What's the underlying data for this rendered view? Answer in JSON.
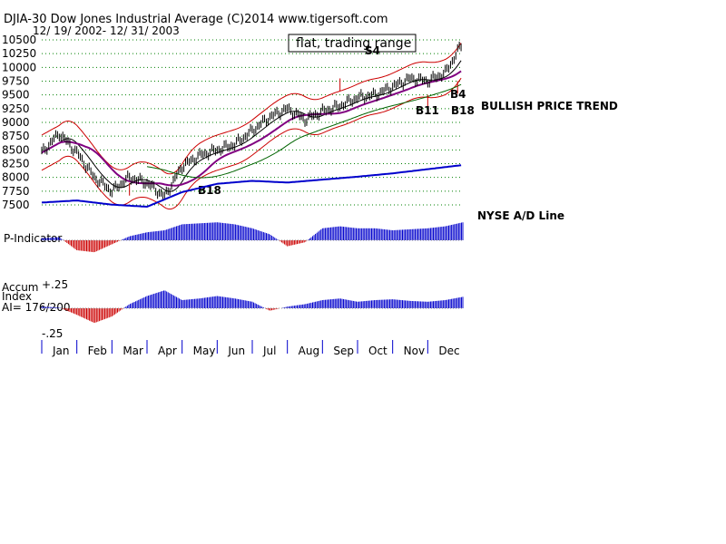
{
  "header": {
    "title": "DJIA-30  Dow Jones Industrial Average   (C)2014 www.tigersoft.com",
    "range": "12/ 19/ 2002- 12/ 31/ 2003"
  },
  "annotations": {
    "flat": "flat, trading range",
    "s4": "S4",
    "b18_low": "B18",
    "b4": "B4",
    "b11": "B11",
    "b18_high": "B18",
    "bullish": "BULLISH PRICE TREND",
    "nyse": "NYSE A/D Line",
    "pind": "P-Indicator",
    "accum1": "Accum",
    "accum2": "Index",
    "ai": "AI= 176/200",
    "plus25": "+.25",
    "minus25": "-.25"
  },
  "colors": {
    "grid": "#008000",
    "price": "#000000",
    "band": "#cc0000",
    "ma_purple": "#800080",
    "ma_green": "#006400",
    "ad_line": "#0000cc",
    "pos_bar": "#0000cc",
    "neg_bar": "#cc0000"
  },
  "chart_data": [
    {
      "type": "line",
      "title": "DJIA-30  Dow Jones Industrial Average",
      "subtitle": "12/ 19/ 2002- 12/ 31/ 2003",
      "y_ticks": [
        10500,
        10250,
        10000,
        9750,
        9500,
        9250,
        9000,
        8750,
        8500,
        8250,
        8000,
        7750,
        7500
      ],
      "ylim": [
        7500,
        10500
      ],
      "x_months": [
        "Jan",
        "Feb",
        "Mar",
        "Apr",
        "May",
        "Jun",
        "Jul",
        "Aug",
        "Sep",
        "Oct",
        "Nov",
        "Dec"
      ],
      "grid": true,
      "series": [
        {
          "role": "price",
          "x": [
            0,
            0.5,
            1,
            1.5,
            2,
            2.5,
            3,
            3.5,
            4,
            4.5,
            5,
            5.5,
            6,
            6.5,
            7,
            7.5,
            8,
            8.5,
            9,
            9.5,
            10,
            10.5,
            11,
            11.5,
            12
          ],
          "values": [
            8450,
            8800,
            8450,
            8000,
            7750,
            8000,
            7900,
            7650,
            8200,
            8400,
            8500,
            8600,
            8850,
            9100,
            9250,
            9050,
            9200,
            9300,
            9450,
            9500,
            9650,
            9800,
            9750,
            9900,
            10450
          ]
        }
      ]
    },
    {
      "type": "area",
      "title": "NYSE A/D Line",
      "series": [
        {
          "role": "ad_line",
          "x": [
            0,
            1,
            2,
            3,
            4,
            5,
            6,
            7,
            8,
            9,
            10,
            11,
            12
          ],
          "values": [
            0.1,
            0.15,
            0.05,
            0.0,
            0.35,
            0.55,
            0.62,
            0.58,
            0.65,
            0.72,
            0.8,
            0.9,
            1.0
          ]
        }
      ]
    },
    {
      "type": "bar",
      "title": "P-Indicator",
      "x": [
        0,
        0.5,
        1,
        1.5,
        2,
        2.5,
        3,
        3.5,
        4,
        4.5,
        5,
        5.5,
        6,
        6.5,
        7,
        7.5,
        8,
        8.5,
        9,
        9.5,
        10,
        10.5,
        11,
        11.5,
        12
      ],
      "values": [
        0.1,
        0.15,
        -0.5,
        -0.6,
        -0.2,
        0.2,
        0.4,
        0.5,
        0.8,
        0.85,
        0.9,
        0.8,
        0.6,
        0.3,
        -0.3,
        -0.1,
        0.6,
        0.7,
        0.6,
        0.6,
        0.5,
        0.55,
        0.6,
        0.7,
        0.9
      ]
    },
    {
      "type": "bar",
      "title": "Accum Index",
      "ylim": [
        -0.25,
        0.25
      ],
      "x": [
        0,
        0.5,
        1,
        1.5,
        2,
        2.5,
        3,
        3.5,
        4,
        4.5,
        5,
        5.5,
        6,
        6.5,
        7,
        7.5,
        8,
        8.5,
        9,
        9.5,
        10,
        10.5,
        11,
        11.5,
        12
      ],
      "values": [
        0.02,
        0.01,
        -0.08,
        -0.18,
        -0.1,
        0.05,
        0.15,
        0.22,
        0.1,
        0.12,
        0.15,
        0.12,
        0.08,
        -0.03,
        0.02,
        0.05,
        0.1,
        0.12,
        0.08,
        0.1,
        0.11,
        0.09,
        0.08,
        0.1,
        0.14
      ]
    }
  ]
}
